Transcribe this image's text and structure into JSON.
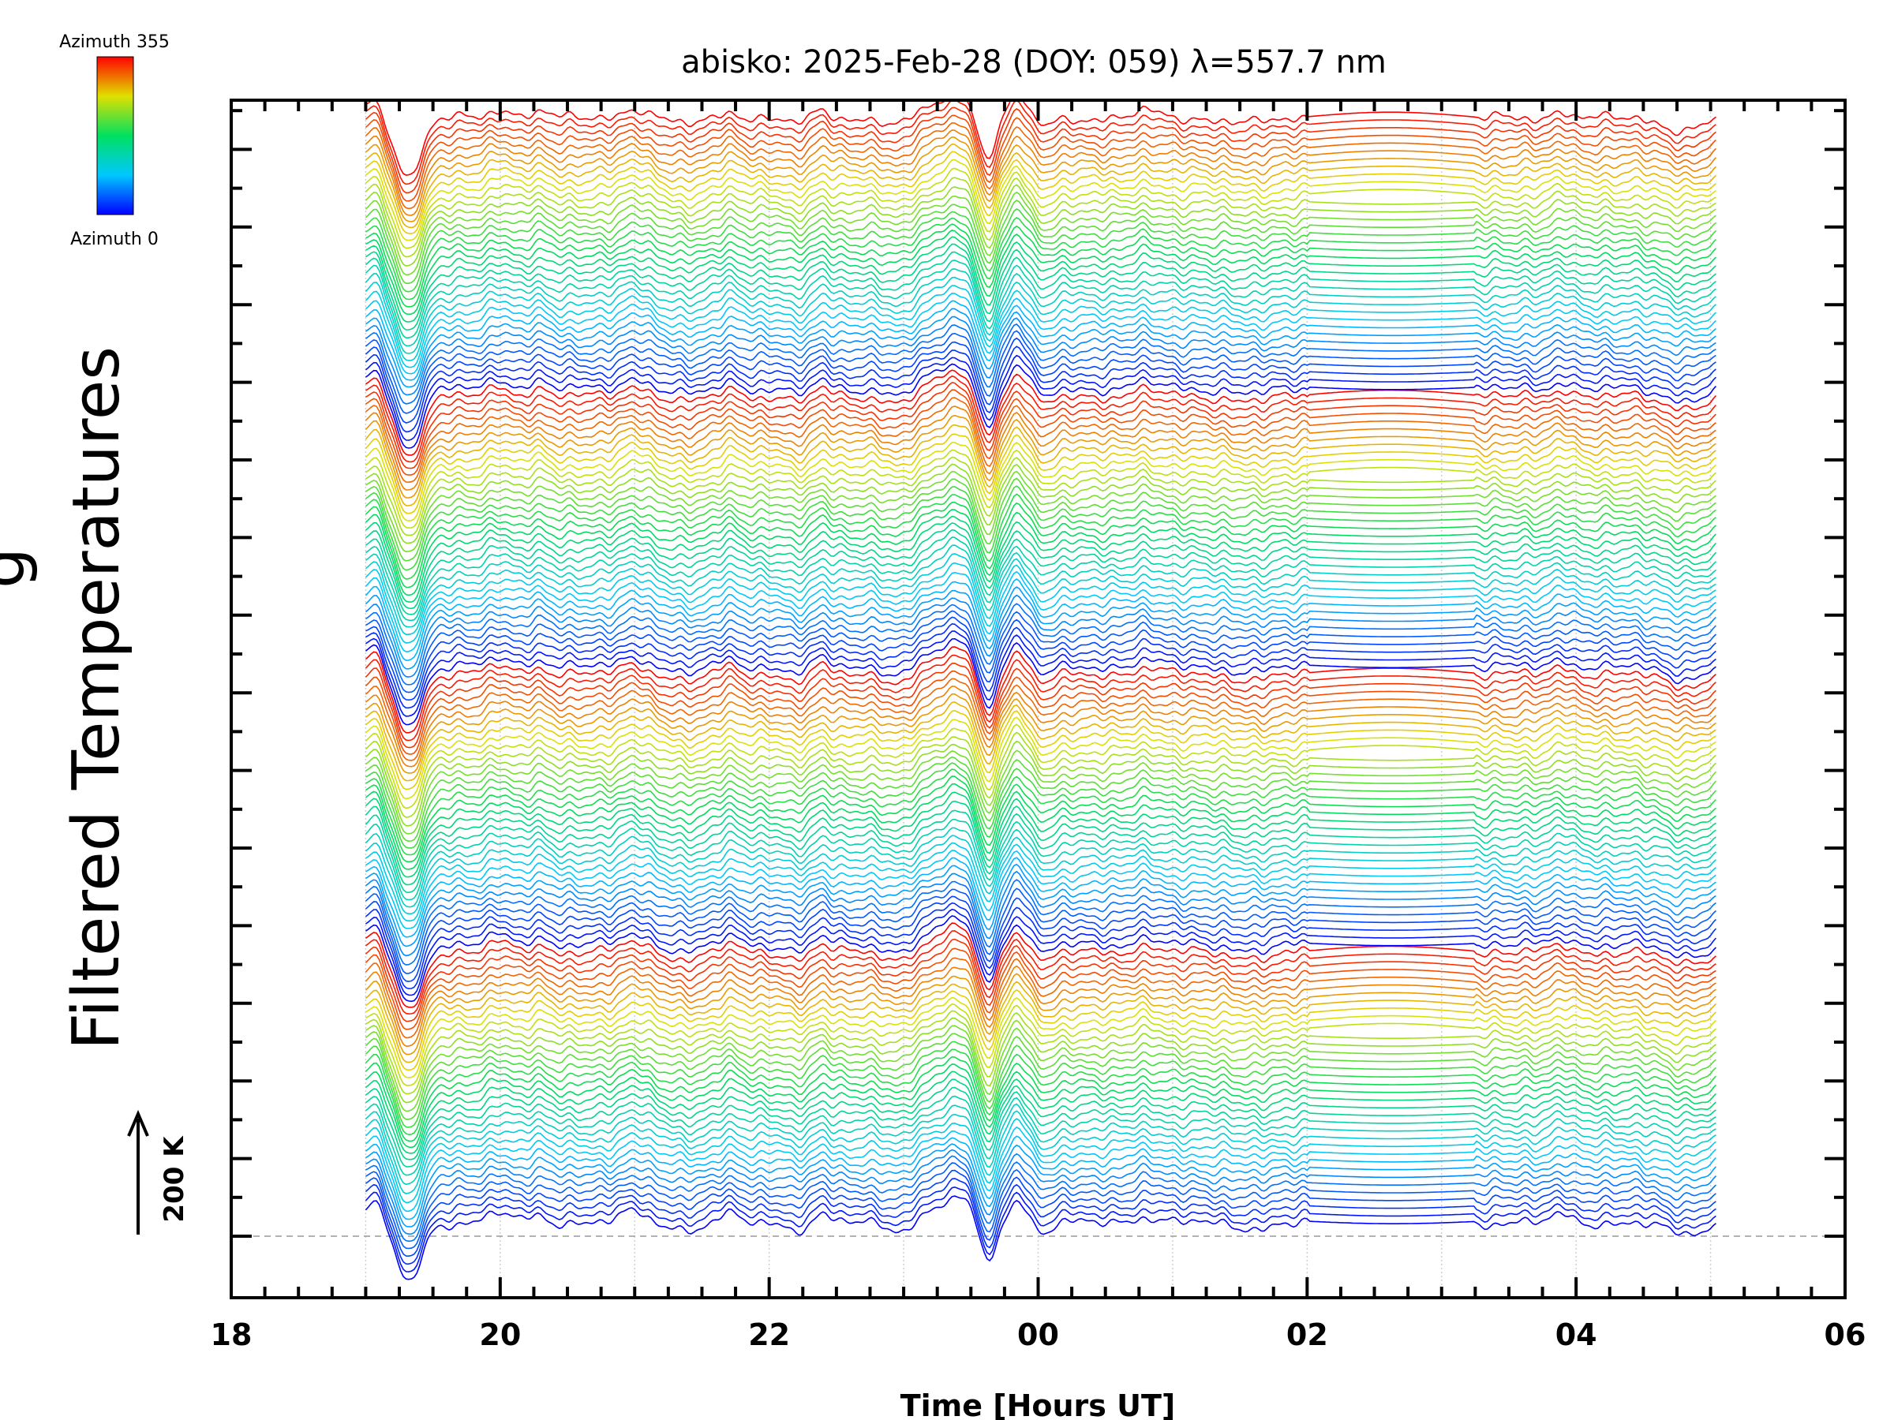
{
  "chart_data": {
    "type": "line",
    "title": "abisko: 2025-Feb-28 (DOY: 059) λ=557.7 nm",
    "xlabel": "Time [Hours UT]",
    "ylabel": "Filtered Temperatures",
    "ylabel_partial": "g",
    "x_ticks": [
      {
        "value": 18,
        "label": "18"
      },
      {
        "value": 20,
        "label": "20"
      },
      {
        "value": 22,
        "label": "22"
      },
      {
        "value": 24,
        "label": "00"
      },
      {
        "value": 26,
        "label": "02"
      },
      {
        "value": 28,
        "label": "04"
      },
      {
        "value": 30,
        "label": "06"
      }
    ],
    "xlim": [
      18,
      30
    ],
    "data_range_hours": [
      19.0,
      29.05
    ],
    "n_traces": 144,
    "azimuth_range": [
      0,
      355
    ],
    "colorbar": {
      "top_label": "Azimuth 355",
      "bottom_label": "Azimuth 0",
      "colormap": "rainbow (blue → cyan → green → yellow → red)"
    },
    "scale_bar": {
      "label": "200 K",
      "value_K": 200
    },
    "grid": "vertical dotted lines every hour",
    "features": [
      {
        "time": 19.3,
        "description": "deep dip in all traces"
      },
      {
        "time": 23.6,
        "description": "sharp dip after peak near 23.4"
      },
      {
        "time": 23.85,
        "description": "secondary peak"
      },
      {
        "time": 26.0,
        "description": "data gap with linear interpolation until 27.2"
      }
    ]
  },
  "colors": {
    "axis": "#000000",
    "grid": "#d0d0d0",
    "baseline": "#999999"
  }
}
